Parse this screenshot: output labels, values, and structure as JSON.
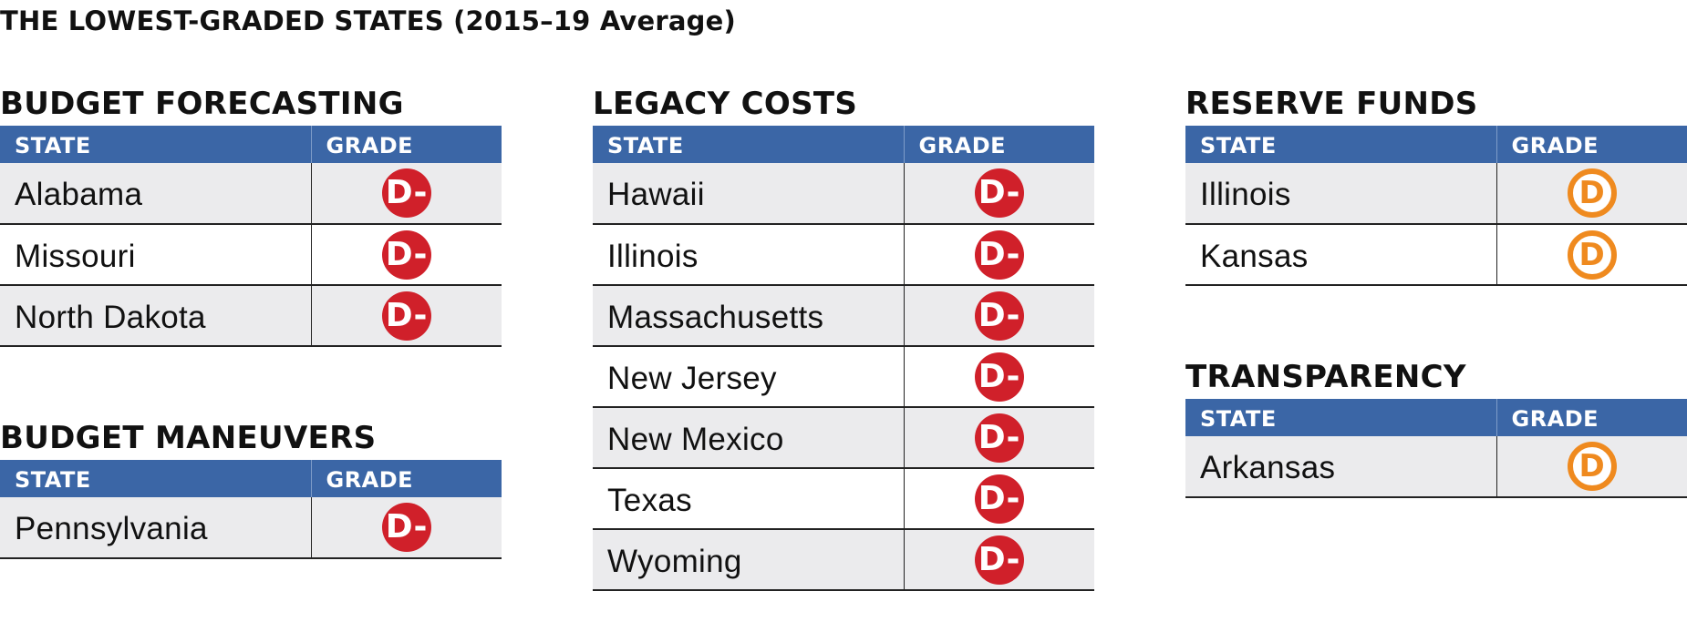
{
  "page_title": "THE LOWEST-GRADED STATES (2015–19 Average)",
  "colors": {
    "header_bg": "#3b66a6",
    "row_shade": "#ebebed",
    "d_minus_badge": "#d0202a",
    "d_badge": "#ef8a1f"
  },
  "sections": [
    {
      "title": "BUDGET FORECASTING",
      "col_state": "STATE",
      "col_grade": "GRADE",
      "rows": [
        {
          "state": "Alabama",
          "grade": "D-"
        },
        {
          "state": "Missouri",
          "grade": "D-"
        },
        {
          "state": "North Dakota",
          "grade": "D-"
        }
      ]
    },
    {
      "title": "BUDGET MANEUVERS",
      "col_state": "STATE",
      "col_grade": "GRADE",
      "rows": [
        {
          "state": "Pennsylvania",
          "grade": "D-"
        }
      ]
    },
    {
      "title": "LEGACY COSTS",
      "col_state": "STATE",
      "col_grade": "GRADE",
      "rows": [
        {
          "state": "Hawaii",
          "grade": "D-"
        },
        {
          "state": "Illinois",
          "grade": "D-"
        },
        {
          "state": "Massachusetts",
          "grade": "D-"
        },
        {
          "state": "New Jersey",
          "grade": "D-"
        },
        {
          "state": "New Mexico",
          "grade": "D-"
        },
        {
          "state": "Texas",
          "grade": "D-"
        },
        {
          "state": "Wyoming",
          "grade": "D-"
        }
      ]
    },
    {
      "title": "RESERVE FUNDS",
      "col_state": "STATE",
      "col_grade": "GRADE",
      "rows": [
        {
          "state": "Illinois",
          "grade": "D"
        },
        {
          "state": "Kansas",
          "grade": "D"
        }
      ]
    },
    {
      "title": "TRANSPARENCY",
      "col_state": "STATE",
      "col_grade": "GRADE",
      "rows": [
        {
          "state": "Arkansas",
          "grade": "D"
        }
      ]
    }
  ]
}
